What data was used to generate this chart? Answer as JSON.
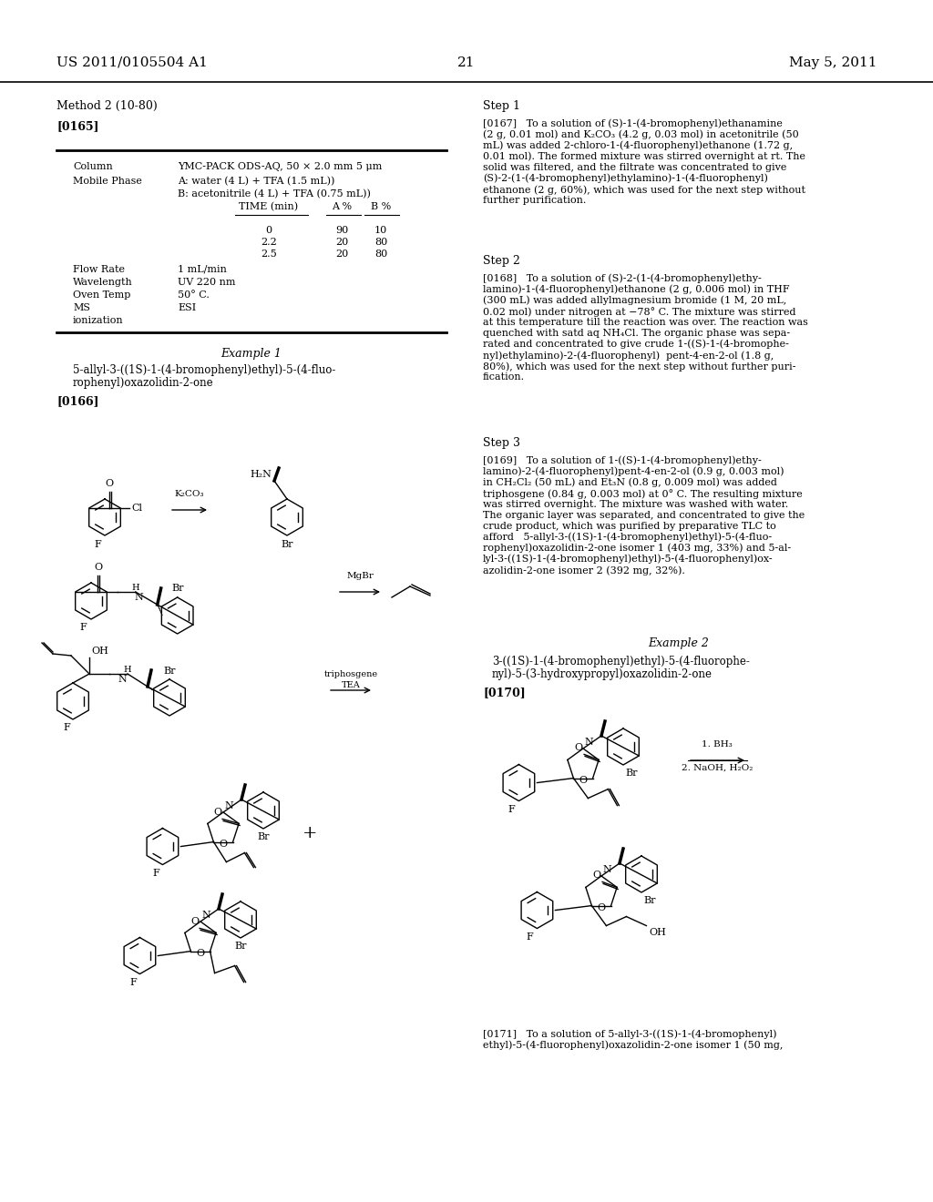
{
  "bg_color": "#ffffff",
  "text_color": "#000000",
  "header_left": "US 2011/0105504 A1",
  "header_center": "21",
  "header_right": "May 5, 2011",
  "method_label": "Method 2 (10-80)",
  "para_165": "[0165]",
  "col_label": "Column",
  "col_value": "YMC-PACK ODS-AQ, 50 × 2.0 mm 5 μm",
  "mp_label": "Mobile Phase",
  "mp_a": "A: water (4 L) + TFA (1.5 mL))",
  "mp_b": "B: acetonitrile (4 L) + TFA (0.75 mL))",
  "time_header": "TIME (min)",
  "a_header": "A %",
  "b_header": "B %",
  "gradient_rows": [
    [
      "0",
      "90",
      "10"
    ],
    [
      "2.2",
      "20",
      "80"
    ],
    [
      "2.5",
      "20",
      "80"
    ]
  ],
  "flow_rate_label": "Flow Rate",
  "flow_rate_val": "1 mL/min",
  "wavelength_label": "Wavelength",
  "wavelength_val": "UV 220 nm",
  "oven_label": "Oven Temp",
  "oven_val": "50° C.",
  "ms_label": "MS",
  "ms_val": "ESI",
  "ionization_label": "ionization",
  "example1_title": "Example 1",
  "example1_sub1": "5-allyl-3-((1S)-1-(4-bromophenyl)ethyl)-5-(4-fluo-",
  "example1_sub2": "rophenyl)oxazolidin-2-one",
  "para_166": "[0166]",
  "step1_label": "Step 1",
  "para_167": "[0167]   To a solution of (S)-1-(4-bromophenyl)ethanamine\n(2 g, 0.01 mol) and K₂CO₃ (4.2 g, 0.03 mol) in acetonitrile (50\nmL) was added 2-chloro-1-(4-fluorophenyl)ethanone (1.72 g,\n0.01 mol). The formed mixture was stirred overnight at rt. The\nsolid was filtered, and the filtrate was concentrated to give\n(S)-2-(1-(4-bromophenyl)ethylamino)-1-(4-fluorophenyl)\nethanone (2 g, 60%), which was used for the next step without\nfurther purification.",
  "step2_label": "Step 2",
  "para_168": "[0168]   To a solution of (S)-2-(1-(4-bromophenyl)ethy-\nlamino)-1-(4-fluorophenyl)ethanone (2 g, 0.006 mol) in THF\n(300 mL) was added allylmagnesium bromide (1 M, 20 mL,\n0.02 mol) under nitrogen at −78° C. The mixture was stirred\nat this temperature till the reaction was over. The reaction was\nquenched with satd aq NH₄Cl. The organic phase was sepa-\nrated and concentrated to give crude 1-((S)-1-(4-bromophe-\nnyl)ethylamino)-2-(4-fluorophenyl)  pent-4-en-2-ol (1.8 g,\n80%), which was used for the next step without further puri-\nfication.",
  "step3_label": "Step 3",
  "para_169": "[0169]   To a solution of 1-((S)-1-(4-bromophenyl)ethy-\nlamino)-2-(4-fluorophenyl)pent-4-en-2-ol (0.9 g, 0.003 mol)\nin CH₂Cl₂ (50 mL) and Et₃N (0.8 g, 0.009 mol) was added\ntriphosgene (0.84 g, 0.003 mol) at 0° C. The resulting mixture\nwas stirred overnight. The mixture was washed with water.\nThe organic layer was separated, and concentrated to give the\ncrude product, which was purified by preparative TLC to\nafford   5-allyl-3-((1S)-1-(4-bromophenyl)ethyl)-5-(4-fluo-\nrophenyl)oxazolidin-2-one isomer 1 (403 mg, 33%) and 5-al-\nlyl-3-((1S)-1-(4-bromophenyl)ethyl)-5-(4-fluorophenyl)ox-\nazolidin-2-one isomer 2 (392 mg, 32%).",
  "example2_title": "Example 2",
  "example2_sub1": "3-((1S)-1-(4-bromophenyl)ethyl)-5-(4-fluorophe-",
  "example2_sub2": "nyl)-5-(3-hydroxypropyl)oxazolidin-2-one",
  "para_170": "[0170]",
  "para_171": "[0171]   To a solution of 5-allyl-3-((1S)-1-(4-bromophenyl)\nethyl)-5-(4-fluorophenyl)oxazolidin-2-one isomer 1 (50 mg,"
}
